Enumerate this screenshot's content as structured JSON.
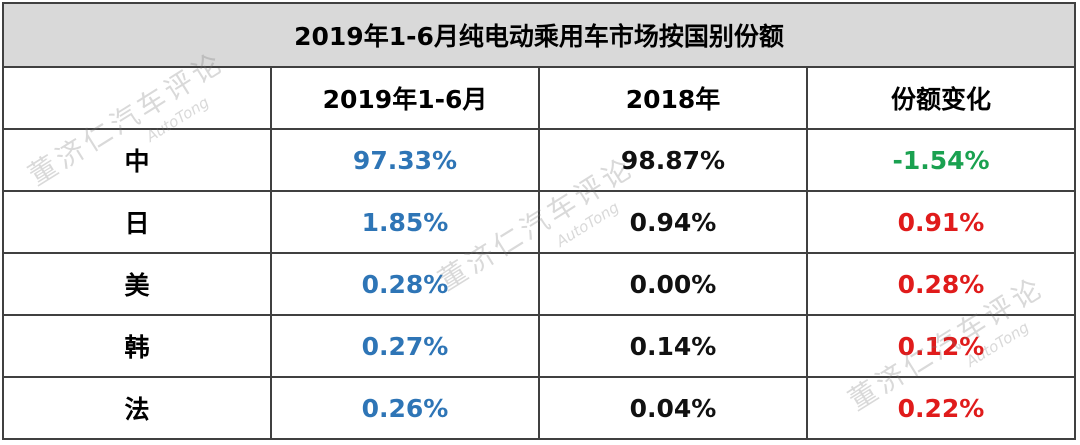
{
  "table": {
    "title": "2019年1-6月纯电动乘用车市场按国别份额",
    "header": [
      "2019年1-6月",
      "2018年",
      "份额变化"
    ],
    "rows": [
      {
        "label": "中",
        "values": [
          "97.33%",
          "98.87%",
          "-1.54%"
        ]
      },
      {
        "label": "日",
        "values": [
          "1.85%",
          "0.94%",
          "0.91%"
        ]
      },
      {
        "label": "美",
        "values": [
          "0.28%",
          "0.00%",
          "0.28%"
        ]
      },
      {
        "label": "韩",
        "values": [
          "0.27%",
          "0.14%",
          "0.12%"
        ]
      },
      {
        "label": "法",
        "values": [
          "0.26%",
          "0.04%",
          "0.22%"
        ]
      }
    ]
  },
  "watermark": {
    "cn": "董济仁汽车评论",
    "en": "AutoTong"
  }
}
